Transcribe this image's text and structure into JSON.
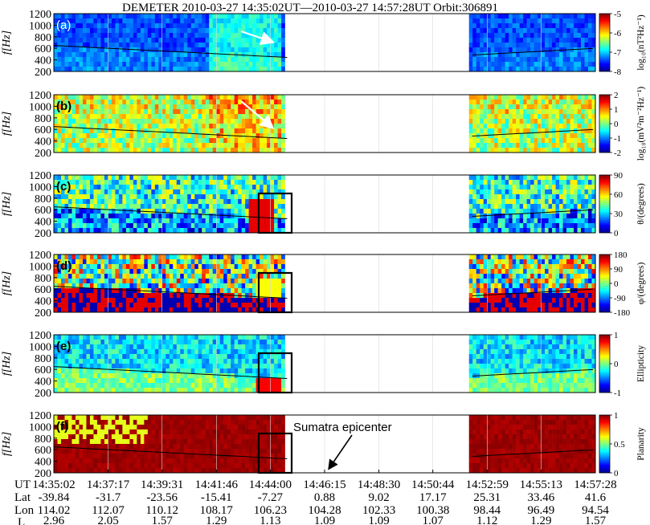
{
  "chart_data": {
    "type": "heatmap",
    "title": "DEMETER 2010-03-27 14:35:02UT—2010-03-27 14:57:28UT Orbit:306891",
    "ylabel": "f[Hz]",
    "ylim": [
      200,
      1200
    ],
    "yticks": [
      "1200",
      "1000",
      "800",
      "600",
      "400",
      "200"
    ],
    "gap_range": [
      "14:44:45",
      "14:52:10"
    ],
    "ticks": [
      {
        "ut": "14:35:02",
        "lat": "-39.84",
        "lon": "114.02",
        "l": "2.96"
      },
      {
        "ut": "14:37:17",
        "lat": "-31.7",
        "lon": "112.07",
        "l": "2.05"
      },
      {
        "ut": "14:39:31",
        "lat": "-23.56",
        "lon": "110.12",
        "l": "1.57"
      },
      {
        "ut": "14:41:46",
        "lat": "-15.41",
        "lon": "108.17",
        "l": "1.29"
      },
      {
        "ut": "14:44:00",
        "lat": "-7.27",
        "lon": "106.23",
        "l": "1.13"
      },
      {
        "ut": "14:46:15",
        "lat": "0.88",
        "lon": "104.28",
        "l": "1.09"
      },
      {
        "ut": "14:48:30",
        "lat": "9.02",
        "lon": "102.33",
        "l": "1.09"
      },
      {
        "ut": "14:50:44",
        "lat": "17.17",
        "lon": "100.38",
        "l": "1.07"
      },
      {
        "ut": "14:52:59",
        "lat": "25.31",
        "lon": "98.44",
        "l": "1.12"
      },
      {
        "ut": "14:55:13",
        "lat": "33.46",
        "lon": "96.49",
        "l": "1.29"
      },
      {
        "ut": "14:57:28",
        "lat": "41.6",
        "lon": "94.54",
        "l": "1.57"
      }
    ],
    "row_labels": {
      "ut": "UT",
      "lat": "Lat",
      "lon": "Lon",
      "l": "L"
    },
    "panels": [
      {
        "id": "a",
        "tag": "(a)",
        "quantity": "magnetic spectrum",
        "cbar_ticks": [
          "-5",
          "-6",
          "-7",
          "-8"
        ],
        "cbar_range": [
          -8,
          -5
        ],
        "cbar_label": "log₁₀(nT²Hz⁻¹)",
        "arrow": true
      },
      {
        "id": "b",
        "tag": "(b)",
        "quantity": "electric spectrum",
        "cbar_ticks": [
          "2",
          "1",
          "0",
          "-1",
          "-2"
        ],
        "cbar_range": [
          -2,
          2
        ],
        "cbar_label": "log₁₀(mV²m⁻²Hz⁻¹)",
        "arrow": true
      },
      {
        "id": "c",
        "tag": "(c)",
        "quantity": "wave normal angle",
        "cbar_ticks": [
          "90",
          "60",
          "30",
          "0"
        ],
        "cbar_range": [
          0,
          90
        ],
        "cbar_label": "θ/(degrees)",
        "box": true
      },
      {
        "id": "d",
        "tag": "(d)",
        "quantity": "azimuth angle",
        "cbar_ticks": [
          "180",
          "90",
          "0",
          "-90",
          "-180"
        ],
        "cbar_range": [
          -180,
          180
        ],
        "cbar_label": "φ/(degrees)",
        "box": true
      },
      {
        "id": "e",
        "tag": "(e)",
        "quantity": "ellipticity",
        "cbar_ticks": [
          "1",
          "0",
          "-1"
        ],
        "cbar_range": [
          -1,
          1
        ],
        "cbar_label": "Ellipticity",
        "box": true
      },
      {
        "id": "f",
        "tag": "(f)",
        "quantity": "planarity",
        "cbar_ticks": [
          "1",
          "0.5",
          "0"
        ],
        "cbar_range": [
          0,
          1
        ],
        "cbar_label": "Planarity",
        "box": true
      }
    ],
    "annotation": {
      "text": "Sumatra epicenter",
      "at_ut": "14:46:15"
    },
    "cutoff_line": {
      "description": "black line decreasing from ~650 Hz at start to ~450 Hz near 14:44, then ~480 to ~600 Hz after the gap"
    }
  }
}
